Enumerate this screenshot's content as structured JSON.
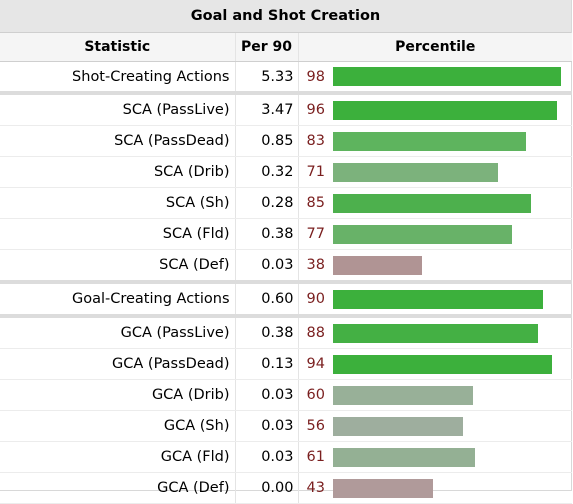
{
  "title": "Goal and Shot Creation",
  "headers": {
    "statistic": "Statistic",
    "per90": "Per 90",
    "percentile": "Percentile"
  },
  "colors": {
    "high": "#3cb03c",
    "high_mid": "#5eb45e",
    "mid": "#7cb27c",
    "low_mid": "#9cb09c",
    "low": "#b09494"
  },
  "rows": [
    {
      "stat": "Shot-Creating Actions",
      "per90": "5.33",
      "percentile": "98",
      "pct_value": 98,
      "color": "#3cb03c"
    },
    {
      "stat": "SCA (PassLive)",
      "per90": "3.47",
      "percentile": "96",
      "pct_value": 96,
      "color": "#3cb03c"
    },
    {
      "stat": "SCA (PassDead)",
      "per90": "0.85",
      "percentile": "83",
      "pct_value": 83,
      "color": "#5eb45e"
    },
    {
      "stat": "SCA (Drib)",
      "per90": "0.32",
      "percentile": "71",
      "pct_value": 71,
      "color": "#7cb27c"
    },
    {
      "stat": "SCA (Sh)",
      "per90": "0.28",
      "percentile": "85",
      "pct_value": 85,
      "color": "#4db04d"
    },
    {
      "stat": "SCA (Fld)",
      "per90": "0.38",
      "percentile": "77",
      "pct_value": 77,
      "color": "#68b268"
    },
    {
      "stat": "SCA (Def)",
      "per90": "0.03",
      "percentile": "38",
      "pct_value": 38,
      "color": "#b09494"
    },
    {
      "stat": "Goal-Creating Actions",
      "per90": "0.60",
      "percentile": "90",
      "pct_value": 90,
      "color": "#3cb03c"
    },
    {
      "stat": "GCA (PassLive)",
      "per90": "0.38",
      "percentile": "88",
      "pct_value": 88,
      "color": "#44b044"
    },
    {
      "stat": "GCA (PassDead)",
      "per90": "0.13",
      "percentile": "94",
      "pct_value": 94,
      "color": "#3cb03c"
    },
    {
      "stat": "GCA (Drib)",
      "per90": "0.03",
      "percentile": "60",
      "pct_value": 60,
      "color": "#98b098"
    },
    {
      "stat": "GCA (Sh)",
      "per90": "0.03",
      "percentile": "56",
      "pct_value": 56,
      "color": "#9eae9e"
    },
    {
      "stat": "GCA (Fld)",
      "per90": "0.03",
      "percentile": "61",
      "pct_value": 61,
      "color": "#94b094"
    },
    {
      "stat": "GCA (Def)",
      "per90": "0.00",
      "percentile": "43",
      "pct_value": 43,
      "color": "#b09a9a"
    }
  ]
}
